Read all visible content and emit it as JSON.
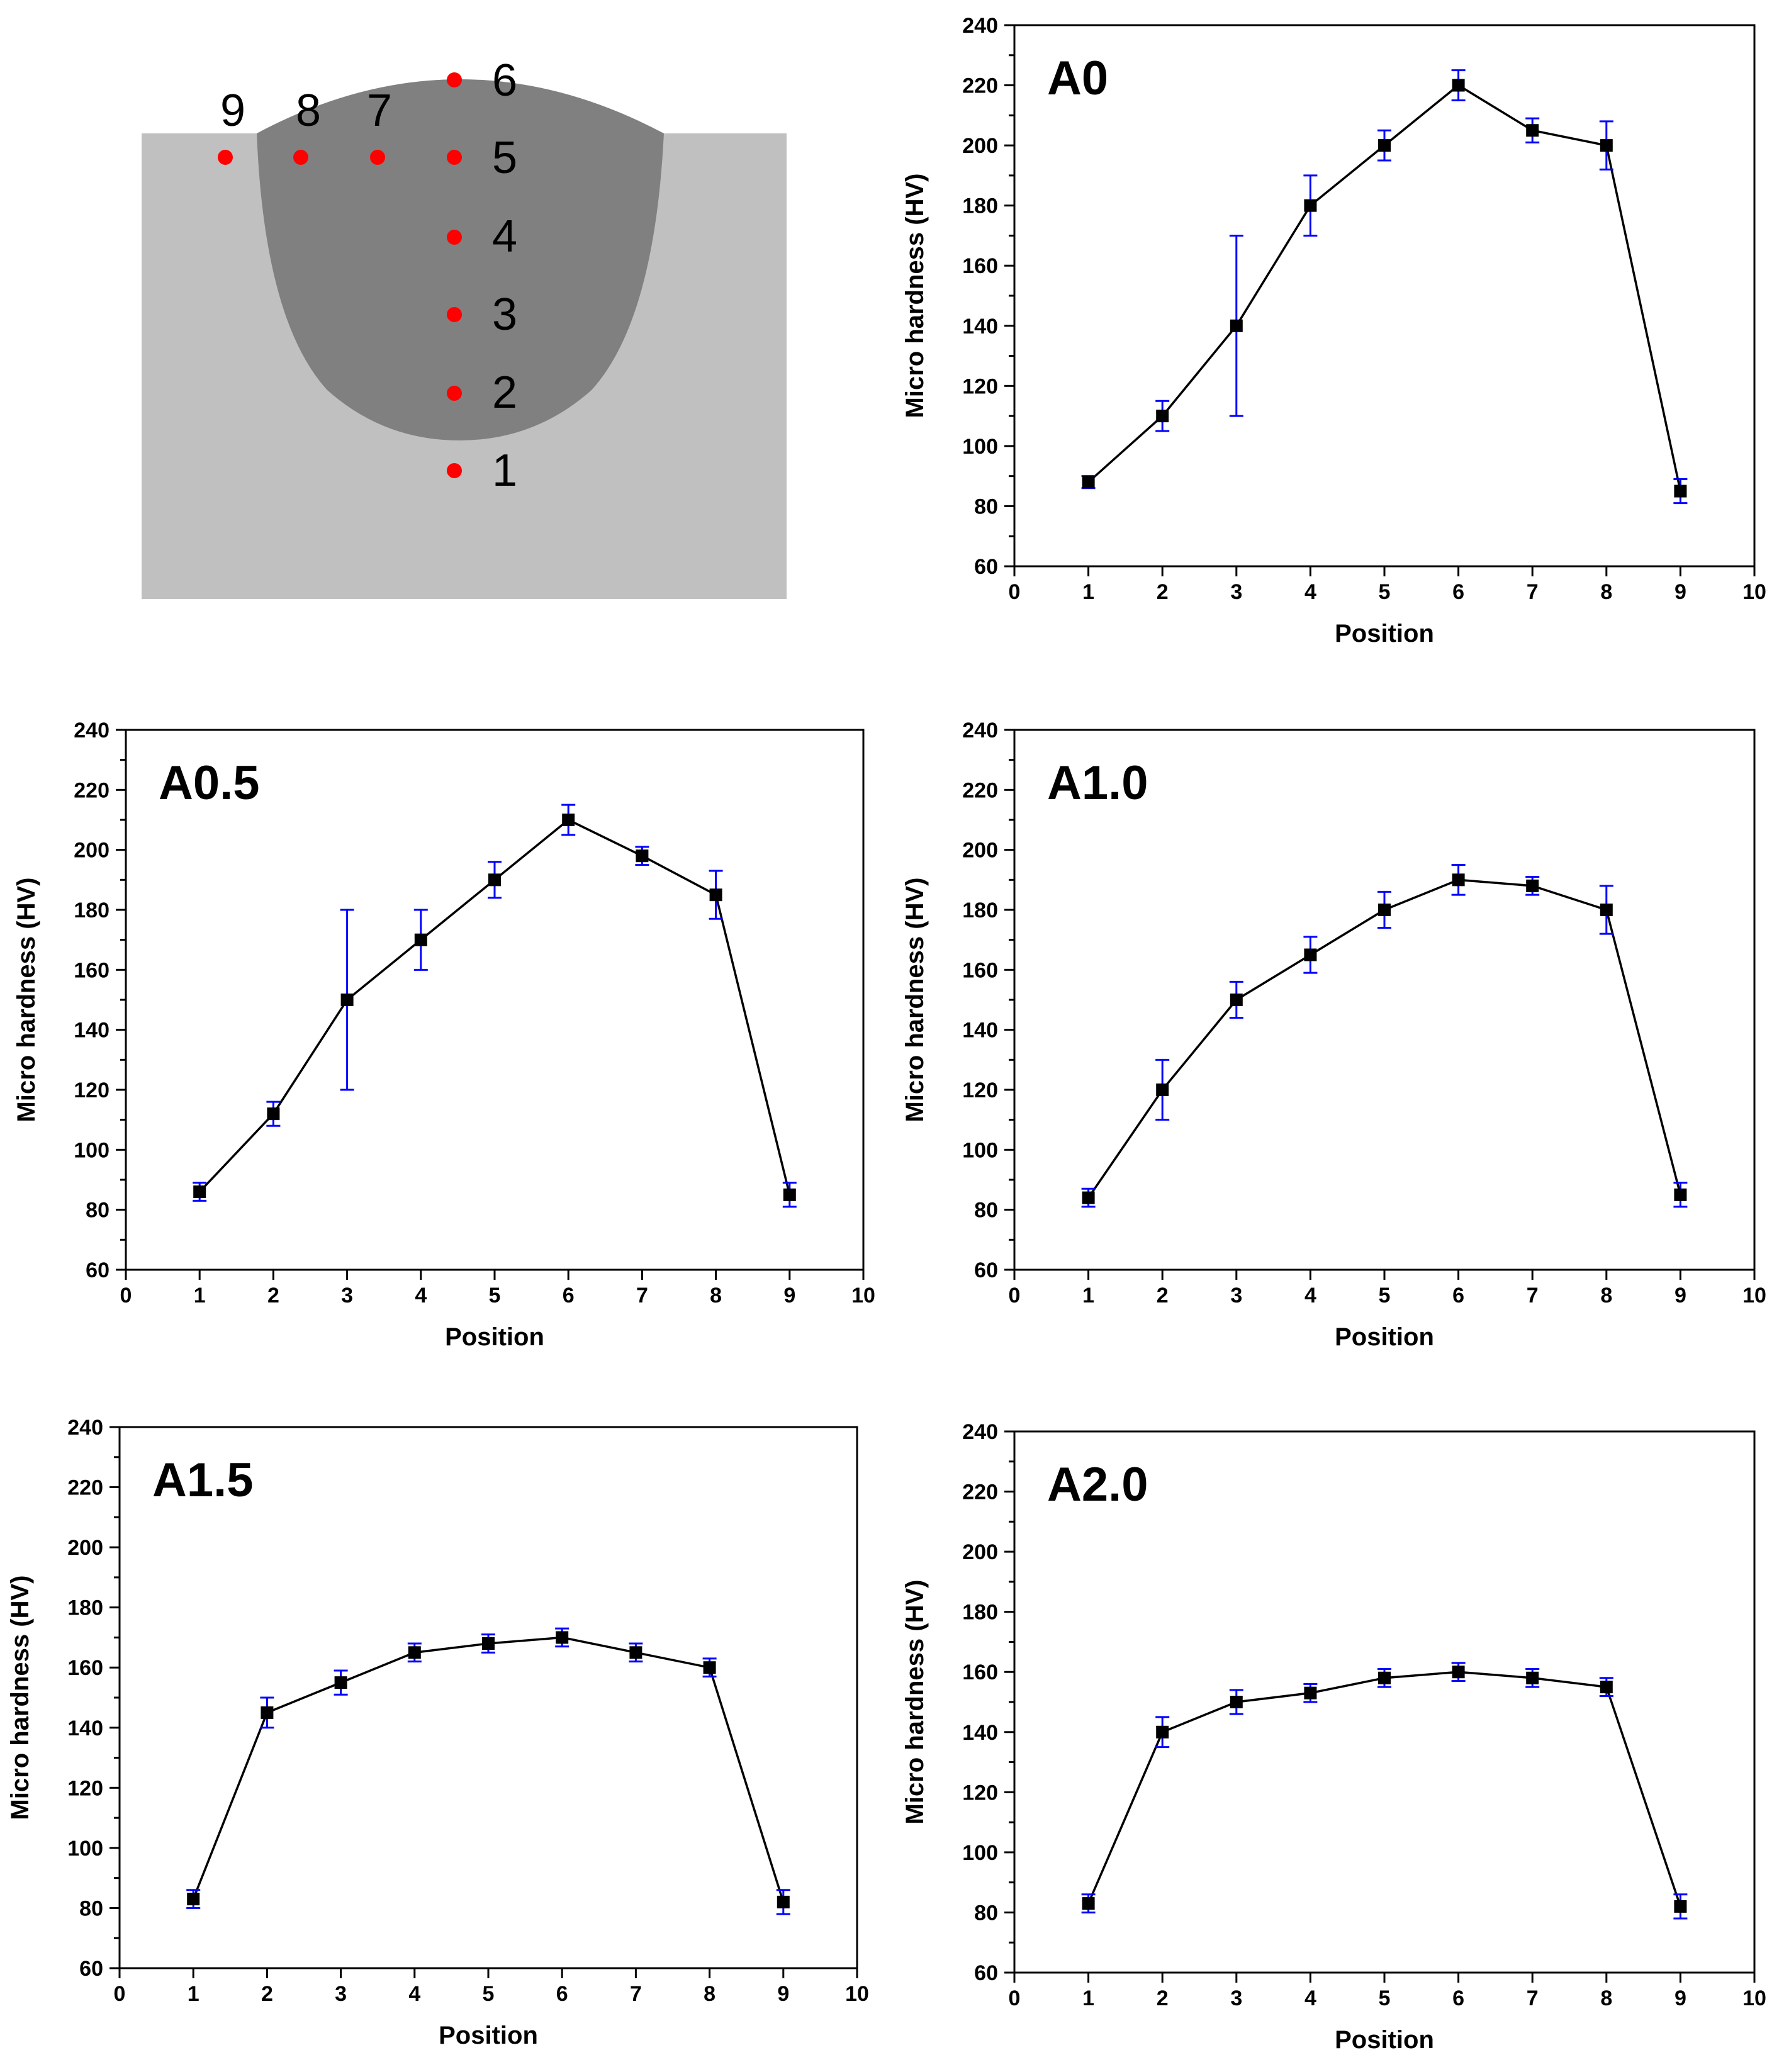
{
  "colors": {
    "base_metal": "#c0c0c0",
    "weld_zone": "#808080",
    "point": "#ff0000",
    "error_bar": "#0000ff",
    "line": "#000000"
  },
  "schematic": {
    "points": [
      {
        "label": "1"
      },
      {
        "label": "2"
      },
      {
        "label": "3"
      },
      {
        "label": "4"
      },
      {
        "label": "5"
      },
      {
        "label": "6"
      },
      {
        "label": "7"
      },
      {
        "label": "8"
      },
      {
        "label": "9"
      }
    ]
  },
  "chart_data": [
    {
      "type": "line",
      "panel_label": "A0",
      "xlabel": "Position",
      "ylabel": "Micro hardness (HV)",
      "xlim": [
        0,
        10
      ],
      "ylim": [
        60,
        240
      ],
      "x": [
        1,
        2,
        3,
        4,
        5,
        6,
        7,
        8,
        9
      ],
      "values": [
        88,
        110,
        140,
        180,
        200,
        220,
        205,
        200,
        85
      ],
      "err": [
        2,
        5,
        30,
        10,
        5,
        5,
        4,
        8,
        4
      ],
      "legend": "none"
    },
    {
      "type": "line",
      "panel_label": "A0.5",
      "xlabel": "Position",
      "ylabel": "Micro hardness (HV)",
      "xlim": [
        0,
        10
      ],
      "ylim": [
        60,
        240
      ],
      "x": [
        1,
        2,
        3,
        4,
        5,
        6,
        7,
        8,
        9
      ],
      "values": [
        86,
        112,
        150,
        170,
        190,
        210,
        198,
        185,
        85
      ],
      "err": [
        3,
        4,
        30,
        10,
        6,
        5,
        3,
        8,
        4
      ],
      "legend": "none"
    },
    {
      "type": "line",
      "panel_label": "A1.0",
      "xlabel": "Position",
      "ylabel": "Micro hardness (HV)",
      "xlim": [
        0,
        10
      ],
      "ylim": [
        60,
        240
      ],
      "x": [
        1,
        2,
        3,
        4,
        5,
        6,
        7,
        8,
        9
      ],
      "values": [
        84,
        120,
        150,
        165,
        180,
        190,
        188,
        180,
        85
      ],
      "err": [
        3,
        10,
        6,
        6,
        6,
        5,
        3,
        8,
        4
      ],
      "legend": "none"
    },
    {
      "type": "line",
      "panel_label": "A1.5",
      "xlabel": "Position",
      "ylabel": "Micro hardness (HV)",
      "xlim": [
        0,
        10
      ],
      "ylim": [
        60,
        240
      ],
      "x": [
        1,
        2,
        3,
        4,
        5,
        6,
        7,
        8,
        9
      ],
      "values": [
        83,
        145,
        155,
        165,
        168,
        170,
        165,
        160,
        82
      ],
      "err": [
        3,
        5,
        4,
        3,
        3,
        3,
        3,
        3,
        4
      ],
      "legend": "none"
    },
    {
      "type": "line",
      "panel_label": "A2.0",
      "xlabel": "Position",
      "ylabel": "Micro hardness (HV)",
      "xlim": [
        0,
        10
      ],
      "ylim": [
        60,
        240
      ],
      "x": [
        1,
        2,
        3,
        4,
        5,
        6,
        7,
        8,
        9
      ],
      "values": [
        83,
        140,
        150,
        153,
        158,
        160,
        158,
        155,
        82
      ],
      "err": [
        3,
        5,
        4,
        3,
        3,
        3,
        3,
        3,
        4
      ],
      "legend": "none"
    }
  ]
}
